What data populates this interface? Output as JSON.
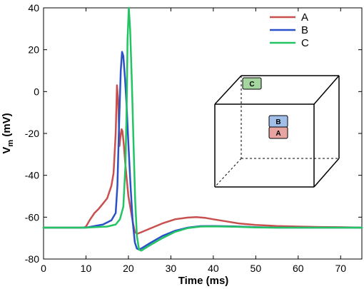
{
  "chart_data": {
    "type": "line",
    "xlabel": "Time (ms)",
    "ylabel": {
      "main": "V",
      "sub": "m",
      "unit": " (mV)"
    },
    "xlim": [
      0,
      75
    ],
    "ylim": [
      -80,
      40
    ],
    "xticks": [
      0,
      10,
      20,
      30,
      40,
      50,
      60,
      70
    ],
    "yticks": [
      -80,
      -60,
      -40,
      -20,
      0,
      20,
      40
    ],
    "grid": false,
    "legend_position": "top-right",
    "series": [
      {
        "name": "A",
        "color": "#c8504f",
        "x": [
          0,
          9.5,
          10,
          11,
          12,
          13,
          14,
          15,
          16,
          16.5,
          17,
          17.3,
          17.6,
          17.9,
          18.1,
          18.4,
          18.6,
          18.9,
          19.2,
          19.6,
          20,
          20.5,
          21,
          21.5,
          22,
          23,
          25,
          28,
          31,
          34,
          36,
          38,
          40,
          43,
          46,
          50,
          55,
          60,
          65,
          70,
          75
        ],
        "y": [
          -65,
          -65,
          -64.5,
          -61,
          -58,
          -56,
          -53.5,
          -51,
          -45,
          -39,
          -20,
          3,
          -5,
          -26,
          -22,
          -18,
          -19,
          -25,
          -33,
          -42,
          -50,
          -56,
          -62,
          -67,
          -68,
          -67.2,
          -65.5,
          -63,
          -61,
          -60.2,
          -60,
          -60.3,
          -61,
          -62,
          -63,
          -63.7,
          -64.2,
          -64.5,
          -64.7,
          -64.8,
          -65
        ]
      },
      {
        "name": "B",
        "color": "#2a52c8",
        "x": [
          0,
          10,
          14,
          16,
          17,
          17.4,
          17.8,
          18.2,
          18.5,
          18.8,
          19.2,
          19.6,
          20,
          20.5,
          21,
          21.5,
          22,
          22.5,
          23,
          25,
          28,
          31,
          34,
          37,
          40,
          45,
          50,
          55,
          60,
          65,
          70,
          75
        ],
        "y": [
          -65,
          -65,
          -63.5,
          -61.5,
          -58,
          -45,
          -15,
          10,
          19,
          17,
          6,
          -8,
          -25,
          -45,
          -62,
          -72,
          -75,
          -75.5,
          -75,
          -72.5,
          -69,
          -66.5,
          -65,
          -64.3,
          -64.2,
          -64.4,
          -64.8,
          -65,
          -65,
          -65,
          -65,
          -65
        ]
      },
      {
        "name": "C",
        "color": "#22c463",
        "x": [
          0,
          10,
          15,
          17,
          18,
          18.8,
          19.3,
          19.6,
          19.8,
          20.1,
          20.4,
          20.8,
          21.2,
          21.6,
          22,
          22.5,
          23,
          25,
          28,
          31,
          34,
          37,
          40,
          45,
          50,
          55,
          60,
          65,
          70,
          75
        ],
        "y": [
          -65,
          -65,
          -64.5,
          -63.5,
          -61,
          -55,
          -35,
          -5,
          25,
          40,
          30,
          5,
          -25,
          -52,
          -69,
          -75.5,
          -76,
          -73.5,
          -70,
          -67,
          -65.2,
          -64.5,
          -64.4,
          -64.6,
          -64.9,
          -65,
          -65,
          -65,
          -65,
          -65
        ]
      }
    ],
    "inset": {
      "boxes": [
        {
          "label": "C",
          "color": "#a6d6a0"
        },
        {
          "label": "B",
          "color": "#a0bee8"
        },
        {
          "label": "A",
          "color": "#e8a4a0"
        }
      ]
    }
  }
}
